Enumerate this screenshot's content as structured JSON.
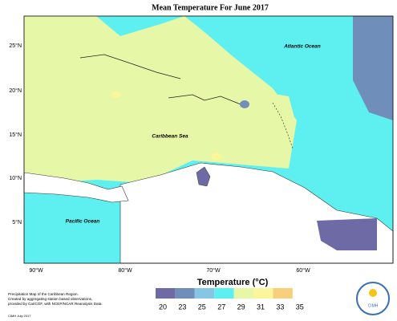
{
  "title": "Mean Temperature For June 2017",
  "map": {
    "labels": [
      "Atlantic Ocean",
      "Caribbean Sea",
      "Pacific Ocean"
    ],
    "lat_labels": [
      "25°N",
      "20°N",
      "15°N",
      "10°N",
      "5°N"
    ],
    "lon_labels": [
      "90°W",
      "80°W",
      "70°W",
      "60°W"
    ]
  },
  "legend": {
    "title": "Temperature (°C)",
    "values": [
      20,
      23,
      25,
      27,
      29,
      31,
      33,
      35
    ],
    "colors": [
      "#6e6aa6",
      "#6f8fba",
      "#86c5e4",
      "#5ef0f0",
      "#e6f7a8",
      "#fbf69a",
      "#f8cf7a",
      "#f2a98a"
    ]
  },
  "credits": {
    "lines": [
      "Precipitation Map of the Caribbean Region.",
      "Created by aggregating station based observations,",
      "provided by CariCOF, with NCEP/NCAR Reanalysis Data."
    ],
    "stamp": "CIMH July 2017"
  },
  "logo": "CIMH"
}
